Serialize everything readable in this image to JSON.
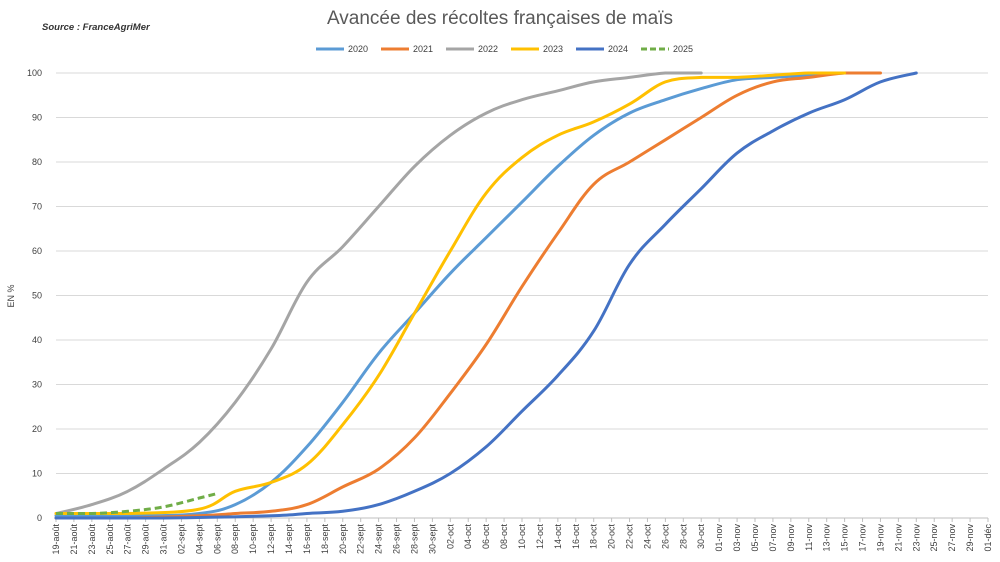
{
  "source": "Source : FranceAgriMer",
  "chart_data": {
    "type": "line",
    "title": "Avancée des récoltes françaises de maïs",
    "xlabel": "",
    "ylabel": "EN %",
    "ylim": [
      0,
      100
    ],
    "yticks": [
      0,
      10,
      20,
      30,
      40,
      50,
      60,
      70,
      80,
      90,
      100
    ],
    "grid": true,
    "legend": "top",
    "categories": [
      "19-août",
      "21-août",
      "23-août",
      "25-août",
      "27-août",
      "29-août",
      "31-août",
      "02-sept",
      "04-sept",
      "06-sept",
      "08-sept",
      "10-sept",
      "12-sept",
      "14-sept",
      "16-sept",
      "18-sept",
      "20-sept",
      "22-sept",
      "24-sept",
      "26-sept",
      "28-sept",
      "30-sept",
      "02-oct",
      "04-oct",
      "06-oct",
      "08-oct",
      "10-oct",
      "12-oct",
      "14-oct",
      "16-oct",
      "18-oct",
      "20-oct",
      "22-oct",
      "24-oct",
      "26-oct",
      "28-oct",
      "30-oct",
      "01-nov",
      "03-nov",
      "05-nov",
      "07-nov",
      "09-nov",
      "11-nov",
      "13-nov",
      "15-nov",
      "17-nov",
      "19-nov",
      "21-nov",
      "23-nov",
      "25-nov",
      "27-nov",
      "29-nov",
      "01-déc"
    ],
    "series": [
      {
        "name": "2020",
        "color": "#5B9BD5",
        "dash": false,
        "points": [
          [
            0,
            0.5
          ],
          [
            5,
            0.5
          ],
          [
            8,
            1
          ],
          [
            10,
            3
          ],
          [
            12,
            8
          ],
          [
            14,
            16
          ],
          [
            16,
            26
          ],
          [
            18,
            37
          ],
          [
            20,
            46
          ],
          [
            22,
            55
          ],
          [
            24,
            63
          ],
          [
            26,
            71
          ],
          [
            28,
            79
          ],
          [
            30,
            86
          ],
          [
            32,
            91
          ],
          [
            34,
            94
          ],
          [
            36,
            96.5
          ],
          [
            38,
            98.5
          ],
          [
            40,
            99
          ],
          [
            42,
            99.5
          ],
          [
            44,
            100
          ]
        ]
      },
      {
        "name": "2021",
        "color": "#ED7D31",
        "dash": false,
        "points": [
          [
            0,
            0
          ],
          [
            4,
            0
          ],
          [
            8,
            0.5
          ],
          [
            10,
            1
          ],
          [
            12,
            1.5
          ],
          [
            14,
            3
          ],
          [
            16,
            7
          ],
          [
            18,
            11
          ],
          [
            20,
            18
          ],
          [
            22,
            28
          ],
          [
            24,
            39
          ],
          [
            26,
            52
          ],
          [
            28,
            64
          ],
          [
            30,
            75
          ],
          [
            32,
            80
          ],
          [
            34,
            85
          ],
          [
            36,
            90
          ],
          [
            38,
            95
          ],
          [
            40,
            98
          ],
          [
            42,
            99
          ],
          [
            44,
            100
          ],
          [
            46,
            100
          ]
        ]
      },
      {
        "name": "2022",
        "color": "#A5A5A5",
        "dash": false,
        "points": [
          [
            0,
            1
          ],
          [
            2,
            3
          ],
          [
            4,
            6
          ],
          [
            6,
            11
          ],
          [
            8,
            17
          ],
          [
            10,
            26
          ],
          [
            12,
            38
          ],
          [
            14,
            53
          ],
          [
            16,
            61
          ],
          [
            18,
            70
          ],
          [
            20,
            79
          ],
          [
            22,
            86
          ],
          [
            24,
            91
          ],
          [
            26,
            94
          ],
          [
            28,
            96
          ],
          [
            30,
            98
          ],
          [
            32,
            99
          ],
          [
            34,
            100
          ],
          [
            36,
            100
          ]
        ]
      },
      {
        "name": "2023",
        "color": "#FFC000",
        "dash": false,
        "points": [
          [
            0,
            1
          ],
          [
            4,
            1
          ],
          [
            8,
            2
          ],
          [
            10,
            6
          ],
          [
            12,
            8
          ],
          [
            14,
            12
          ],
          [
            16,
            21
          ],
          [
            18,
            32
          ],
          [
            20,
            46
          ],
          [
            22,
            60
          ],
          [
            24,
            73
          ],
          [
            26,
            81
          ],
          [
            28,
            86
          ],
          [
            30,
            89
          ],
          [
            32,
            93
          ],
          [
            34,
            98
          ],
          [
            36,
            99
          ],
          [
            38,
            99
          ],
          [
            40,
            99.5
          ],
          [
            42,
            100
          ],
          [
            44,
            100
          ]
        ]
      },
      {
        "name": "2024",
        "color": "#4472C4",
        "dash": false,
        "points": [
          [
            0,
            0
          ],
          [
            6,
            0
          ],
          [
            12,
            0.5
          ],
          [
            14,
            1
          ],
          [
            16,
            1.5
          ],
          [
            18,
            3
          ],
          [
            20,
            6
          ],
          [
            22,
            10
          ],
          [
            24,
            16
          ],
          [
            26,
            24
          ],
          [
            28,
            32
          ],
          [
            30,
            42
          ],
          [
            32,
            57
          ],
          [
            34,
            66
          ],
          [
            36,
            74
          ],
          [
            38,
            82
          ],
          [
            40,
            87
          ],
          [
            42,
            91
          ],
          [
            44,
            94
          ],
          [
            46,
            98
          ],
          [
            48,
            100
          ]
        ]
      },
      {
        "name": "2025",
        "color": "#70AD47",
        "dash": true,
        "points": [
          [
            0,
            1
          ],
          [
            2,
            1
          ],
          [
            4,
            1.5
          ],
          [
            6,
            2.5
          ],
          [
            8,
            4.5
          ],
          [
            9,
            5.5
          ]
        ]
      }
    ]
  }
}
